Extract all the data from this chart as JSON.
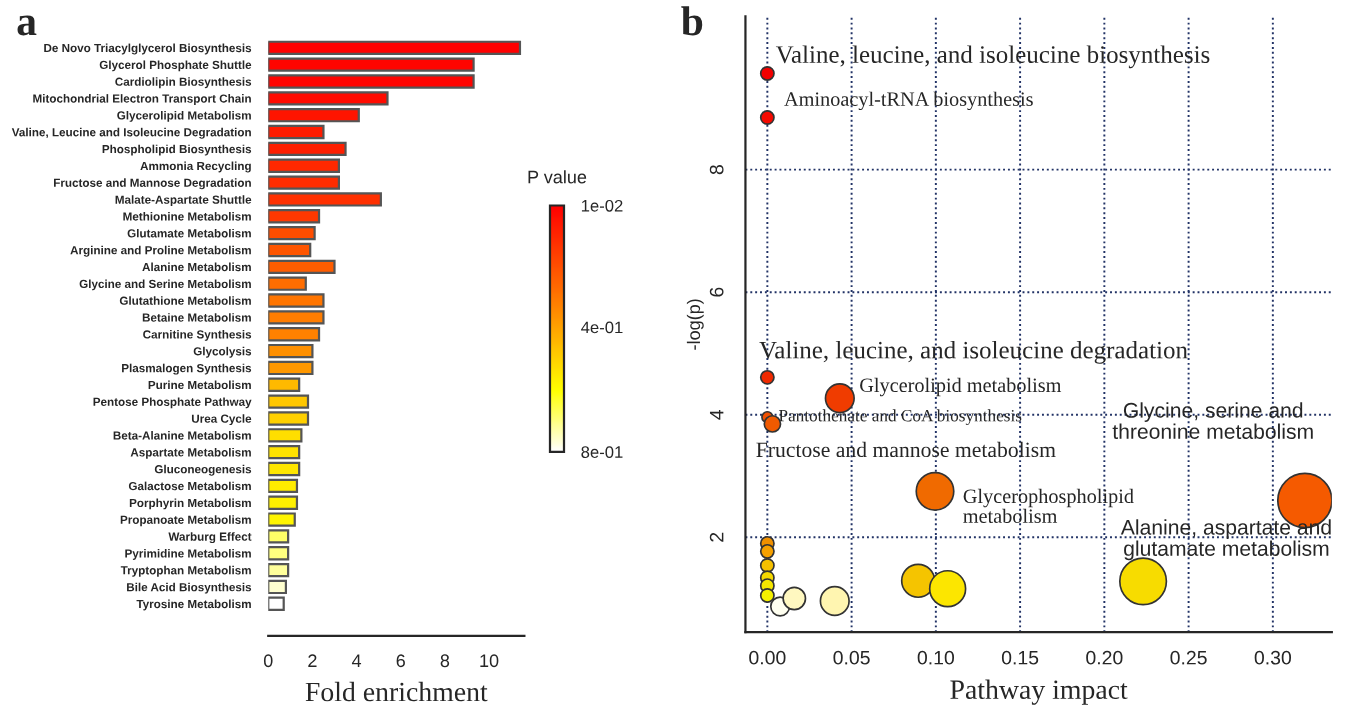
{
  "chart_data": [
    {
      "type": "bar",
      "title": "a",
      "orientation": "horizontal",
      "xlabel": "Fold enrichment",
      "clabel": "P value",
      "categories": [
        "De Novo Triacylglycerol Biosynthesis",
        "Glycerol Phosphate Shuttle",
        "Cardiolipin Biosynthesis",
        "Mitochondrial Electron Transport Chain",
        "Glycerolipid Metabolism",
        "Valine, Leucine and Isoleucine Degradation",
        "Phospholipid Biosynthesis",
        "Ammonia Recycling",
        "Fructose and Mannose Degradation",
        "Malate-Aspartate Shuttle",
        "Methionine Metabolism",
        "Glutamate Metabolism",
        "Arginine and Proline Metabolism",
        "Alanine Metabolism",
        "Glycine and Serine Metabolism",
        "Glutathione Metabolism",
        "Betaine Metabolism",
        "Carnitine Synthesis",
        "Glycolysis",
        "Plasmalogen Synthesis",
        "Purine Metabolism",
        "Pentose Phosphate Pathway",
        "Urea Cycle",
        "Beta-Alanine Metabolism",
        "Aspartate Metabolism",
        "Gluconeogenesis",
        "Galactose Metabolism",
        "Porphyrin Metabolism",
        "Propanoate Metabolism",
        "Warburg Effect",
        "Pyrimidine Metabolism",
        "Tryptophan Metabolism",
        "Bile Acid Biosynthesis",
        "Tyrosine Metabolism"
      ],
      "values": [
        11.4,
        9.3,
        9.3,
        5.4,
        4.1,
        2.5,
        3.5,
        3.2,
        3.2,
        5.1,
        2.3,
        2.1,
        1.9,
        3.0,
        1.7,
        2.5,
        2.5,
        2.3,
        2.0,
        2.0,
        1.4,
        1.8,
        1.8,
        1.5,
        1.4,
        1.4,
        1.3,
        1.3,
        1.2,
        0.9,
        0.9,
        0.9,
        0.8,
        0.7
      ],
      "cvalues": [
        0.01,
        0.02,
        0.02,
        0.04,
        0.06,
        0.08,
        0.09,
        0.11,
        0.12,
        0.13,
        0.15,
        0.2,
        0.22,
        0.24,
        0.28,
        0.3,
        0.32,
        0.33,
        0.36,
        0.38,
        0.45,
        0.48,
        0.5,
        0.53,
        0.54,
        0.55,
        0.56,
        0.57,
        0.58,
        0.68,
        0.7,
        0.72,
        0.76,
        0.8
      ],
      "xlim": [
        0,
        11.6
      ],
      "xticks": [
        0,
        2,
        4,
        6,
        8,
        10
      ],
      "clim": [
        0.01,
        0.8
      ],
      "cticks": [
        {
          "value": 0.01,
          "label": "1e-02"
        },
        {
          "value": 0.4,
          "label": "4e-01"
        },
        {
          "value": 0.8,
          "label": "8e-01"
        }
      ]
    },
    {
      "type": "bubble",
      "title": "b",
      "xlabel": "Pathway impact",
      "ylabel": "-log(p)",
      "x": [
        0,
        0,
        0,
        0.043,
        0,
        0.003,
        0.0995,
        0.319,
        0,
        0,
        0,
        0,
        0,
        0,
        0.0076,
        0.016,
        0.04,
        0.0895,
        0.107,
        0.223
      ],
      "values": [
        9.57,
        8.85,
        4.61,
        4.27,
        3.96,
        3.85,
        2.75,
        2.6,
        1.9,
        1.77,
        1.54,
        1.34,
        1.21,
        1.05,
        0.87,
        1.0,
        0.96,
        1.29,
        1.16,
        1.28
      ],
      "sizes": [
        0.06,
        0.06,
        0.06,
        0.28,
        0.04,
        0.09,
        0.48,
        1,
        0.06,
        0.06,
        0.06,
        0.06,
        0.06,
        0.06,
        0.12,
        0.17,
        0.28,
        0.37,
        0.44,
        0.74
      ],
      "colors": [
        "#f20000",
        "#f50a00",
        "#f02a00",
        "#f03c00",
        "#f05000",
        "#f05a00",
        "#f06a00",
        "#f55a00",
        "#f09000",
        "#f5a000",
        "#f5c000",
        "#f5d800",
        "#f5e600",
        "#f5f000",
        "#fffff0",
        "#fff8c0",
        "#fff5b0",
        "#f5c400",
        "#fce600",
        "#f7dc00"
      ],
      "xlim": [
        -0.013,
        0.335
      ],
      "ylim": [
        0.45,
        10.5
      ],
      "xticks": [
        {
          "value": 0,
          "label": "0.00"
        },
        {
          "value": 0.05,
          "label": "0.05"
        },
        {
          "value": 0.1,
          "label": "0.10"
        },
        {
          "value": 0.15,
          "label": "0.15"
        },
        {
          "value": 0.2,
          "label": "0.20"
        },
        {
          "value": 0.25,
          "label": "0.25"
        },
        {
          "value": 0.3,
          "label": "0.30"
        }
      ],
      "yticks": [
        2,
        4,
        6,
        8
      ],
      "grid": true,
      "annotations": [
        {
          "text": "Valine, leucine, and isoleucine biosynthesis",
          "x": 0,
          "y": 9.57
        },
        {
          "text": "Aminoacyl-tRNA biosynthesis",
          "x": 0,
          "y": 8.85
        },
        {
          "text": "Valine, leucine, and isoleucine degradation",
          "x": 0,
          "y": 4.61
        },
        {
          "text": "Glycerolipid metabolism",
          "x": 0.043,
          "y": 4.27
        },
        {
          "text": "Pantothenate and CoA biosynthesis",
          "x": 0,
          "y": 3.96
        },
        {
          "text": "Fructose and mannose metabolism",
          "x": 0.003,
          "y": 3.85
        },
        {
          "text": "Glycerophospholipid\nmetabolism",
          "x": 0.0995,
          "y": 2.75
        },
        {
          "text": "Glycine, serine and\nthreonine metabolism",
          "x": 0.319,
          "y": 2.6
        },
        {
          "text": "Alanine, aspartate and\nglutamate metabolism",
          "x": 0.223,
          "y": 1.28
        }
      ]
    }
  ]
}
